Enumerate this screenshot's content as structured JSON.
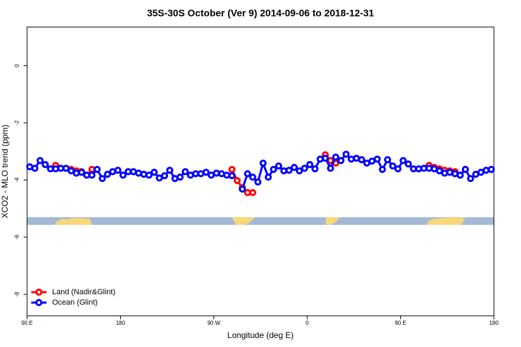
{
  "chart_data": {
    "type": "line",
    "title": "35S-30S October (Ver 9)   2014-09-06 to 2018-12-31",
    "x_label": "Longitude (deg E)",
    "y_label": "XCO2 - MLO trend (ppm)",
    "xlim": [
      90,
      540
    ],
    "xticks": [
      {
        "value": 90,
        "label": "90 E"
      },
      180,
      {
        "value": 270,
        "label": "90 W"
      },
      {
        "value": 360,
        "label": "0"
      },
      {
        "value": 450,
        "label": "90 E"
      },
      {
        "value": 540,
        "label": "180"
      }
    ],
    "ylim": [
      -8.75,
      1.35
    ],
    "yticks": [
      0,
      -2,
      -4,
      -6,
      -8
    ],
    "legend": "bottom-left",
    "x": [
      92.5,
      97.5,
      102.5,
      107.5,
      112.5,
      117.5,
      122.5,
      127.5,
      132.5,
      137.5,
      142.5,
      147.5,
      152.5,
      157.5,
      162.5,
      167.5,
      172.5,
      177.5,
      182.5,
      187.5,
      192.5,
      197.5,
      202.5,
      207.5,
      212.5,
      217.5,
      222.5,
      227.5,
      232.5,
      237.5,
      242.5,
      247.5,
      252.5,
      257.5,
      262.5,
      267.5,
      272.5,
      277.5,
      282.5,
      287.5,
      292.5,
      297.5,
      302.5,
      307.5,
      312.5,
      317.5,
      322.5,
      327.5,
      332.5,
      337.5,
      342.5,
      347.5,
      352.5,
      357.5,
      362.5,
      367.5,
      372.5,
      377.5,
      382.5,
      387.5,
      392.5,
      397.5,
      402.5,
      407.5,
      412.5,
      417.5,
      422.5,
      427.5,
      432.5,
      437.5,
      442.5,
      447.5,
      452.5,
      457.5,
      462.5,
      467.5,
      472.5,
      477.5,
      482.5,
      487.5,
      492.5,
      497.5,
      502.5,
      507.5,
      512.5,
      517.5,
      522.5,
      527.5,
      532.5,
      537.5
    ],
    "series": [
      {
        "name": "Land (Nadir&Glint)",
        "color": "#ff0000",
        "values": [
          null,
          null,
          null,
          null,
          null,
          -3.49,
          null,
          null,
          -3.63,
          -3.68,
          -3.71,
          -3.83,
          -3.63,
          null,
          null,
          null,
          null,
          null,
          null,
          null,
          null,
          null,
          null,
          null,
          null,
          null,
          null,
          null,
          null,
          null,
          null,
          null,
          null,
          null,
          null,
          null,
          null,
          null,
          null,
          -3.63,
          -4.02,
          -4.27,
          -4.44,
          -4.44,
          null,
          null,
          null,
          null,
          null,
          null,
          null,
          null,
          null,
          null,
          null,
          null,
          null,
          -3.12,
          -3.32,
          -3.41,
          null,
          null,
          null,
          null,
          null,
          null,
          null,
          null,
          null,
          null,
          null,
          null,
          null,
          null,
          null,
          null,
          null,
          -3.49,
          -3.56,
          -3.61,
          -3.66,
          -3.68,
          -3.71,
          -3.83,
          -3.63,
          null,
          null,
          null,
          null,
          null
        ]
      },
      {
        "name": "Ocean (Glint)",
        "color": "#0000ff",
        "values": [
          -3.54,
          -3.59,
          -3.32,
          -3.46,
          -3.61,
          -3.61,
          -3.59,
          -3.59,
          -3.68,
          -3.76,
          -3.73,
          -3.83,
          -3.83,
          -3.63,
          -3.95,
          -3.8,
          -3.71,
          -3.66,
          -3.83,
          -3.71,
          -3.71,
          -3.76,
          -3.8,
          -3.83,
          -3.73,
          -3.93,
          -3.85,
          -3.66,
          -3.95,
          -3.9,
          -3.71,
          -3.83,
          -3.78,
          -3.78,
          -3.73,
          -3.83,
          -3.76,
          -3.78,
          -3.83,
          -3.85,
          null,
          -4.32,
          -3.78,
          -3.9,
          -4.07,
          -3.41,
          -3.9,
          -3.63,
          -3.51,
          -3.68,
          -3.66,
          -3.56,
          -3.68,
          -3.59,
          -3.46,
          -3.61,
          -3.27,
          -3.24,
          -3.59,
          -3.2,
          -3.32,
          -3.1,
          -3.27,
          -3.24,
          -3.29,
          -3.41,
          -3.34,
          -3.27,
          -3.63,
          -3.29,
          -3.51,
          -3.61,
          -3.32,
          -3.44,
          -3.61,
          -3.61,
          -3.59,
          -3.59,
          -3.61,
          -3.68,
          -3.76,
          -3.73,
          -3.78,
          -3.83,
          -3.63,
          -3.95,
          -3.8,
          -3.73,
          -3.66,
          -3.63
        ]
      }
    ]
  }
}
